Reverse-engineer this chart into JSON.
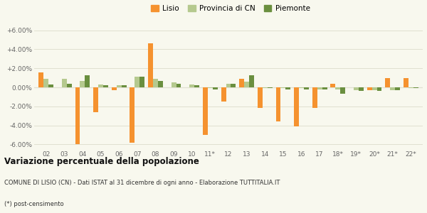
{
  "categories": [
    "02",
    "03",
    "04",
    "05",
    "06",
    "07",
    "08",
    "09",
    "10",
    "11*",
    "12",
    "13",
    "14",
    "15",
    "16",
    "17",
    "18*",
    "19*",
    "20*",
    "21*",
    "22*"
  ],
  "lisio": [
    1.6,
    0.0,
    -6.0,
    -2.6,
    -0.3,
    -5.8,
    4.6,
    0.0,
    0.0,
    -5.0,
    -1.5,
    0.9,
    -2.2,
    -3.6,
    -4.1,
    -2.2,
    0.4,
    0.0,
    -0.3,
    1.0,
    1.0
  ],
  "provincia": [
    0.9,
    0.9,
    0.7,
    0.3,
    0.2,
    1.1,
    0.9,
    0.5,
    0.3,
    -0.1,
    0.4,
    0.6,
    -0.1,
    -0.1,
    -0.1,
    -0.2,
    -0.2,
    -0.3,
    -0.3,
    -0.3,
    -0.1
  ],
  "piemonte": [
    0.3,
    0.4,
    1.3,
    0.2,
    0.2,
    1.1,
    0.7,
    0.4,
    0.2,
    -0.2,
    0.4,
    1.3,
    -0.1,
    -0.2,
    -0.2,
    -0.2,
    -0.7,
    -0.4,
    -0.4,
    -0.3,
    -0.1
  ],
  "color_lisio": "#f5922f",
  "color_provincia": "#b5c98e",
  "color_piemonte": "#6a8f3f",
  "ylim": [
    -6.5,
    6.5
  ],
  "yticks": [
    -6.0,
    -4.0,
    -2.0,
    0.0,
    2.0,
    4.0,
    6.0
  ],
  "ytick_labels": [
    "-6.00%",
    "-4.00%",
    "-2.00%",
    "0.00%",
    "+2.00%",
    "+4.00%",
    "+6.00%"
  ],
  "bg_color": "#f8f8ee",
  "grid_color": "#e0e0d0",
  "title": "Variazione percentuale della popolazione",
  "footnote1": "COMUNE DI LISIO (CN) - Dati ISTAT al 31 dicembre di ogni anno - Elaborazione TUTTITALIA.IT",
  "footnote2": "(*) post-censimento",
  "bar_width": 0.27
}
